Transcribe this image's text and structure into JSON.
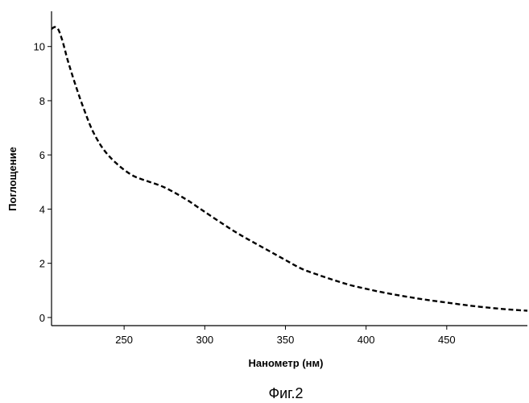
{
  "chart_data": {
    "type": "line",
    "title": "",
    "xlabel": "Нанометр (нм)",
    "ylabel": "Поглощение",
    "xlim": [
      205,
      500
    ],
    "ylim": [
      -0.3,
      11.3
    ],
    "x_ticks": [
      250,
      300,
      350,
      400,
      450
    ],
    "y_ticks": [
      0,
      2,
      4,
      6,
      8,
      10
    ],
    "grid": false,
    "line_style": "dashed",
    "line_color": "#000000",
    "series": [
      {
        "x": [
          205,
          207,
          209,
          211,
          213,
          215,
          220,
          225,
          230,
          235,
          240,
          245,
          250,
          255,
          260,
          265,
          270,
          275,
          280,
          285,
          290,
          295,
          300,
          310,
          320,
          330,
          340,
          350,
          360,
          370,
          380,
          390,
          400,
          410,
          420,
          430,
          440,
          450,
          460,
          470,
          480,
          490,
          500
        ],
        "y": [
          10.65,
          10.72,
          10.65,
          10.35,
          9.95,
          9.5,
          8.55,
          7.7,
          6.95,
          6.4,
          6.0,
          5.7,
          5.45,
          5.25,
          5.12,
          5.02,
          4.92,
          4.8,
          4.65,
          4.48,
          4.3,
          4.1,
          3.9,
          3.5,
          3.12,
          2.78,
          2.45,
          2.12,
          1.8,
          1.58,
          1.38,
          1.2,
          1.06,
          0.93,
          0.82,
          0.72,
          0.63,
          0.55,
          0.47,
          0.4,
          0.34,
          0.29,
          0.25
        ]
      }
    ]
  },
  "caption": "Фиг.2"
}
